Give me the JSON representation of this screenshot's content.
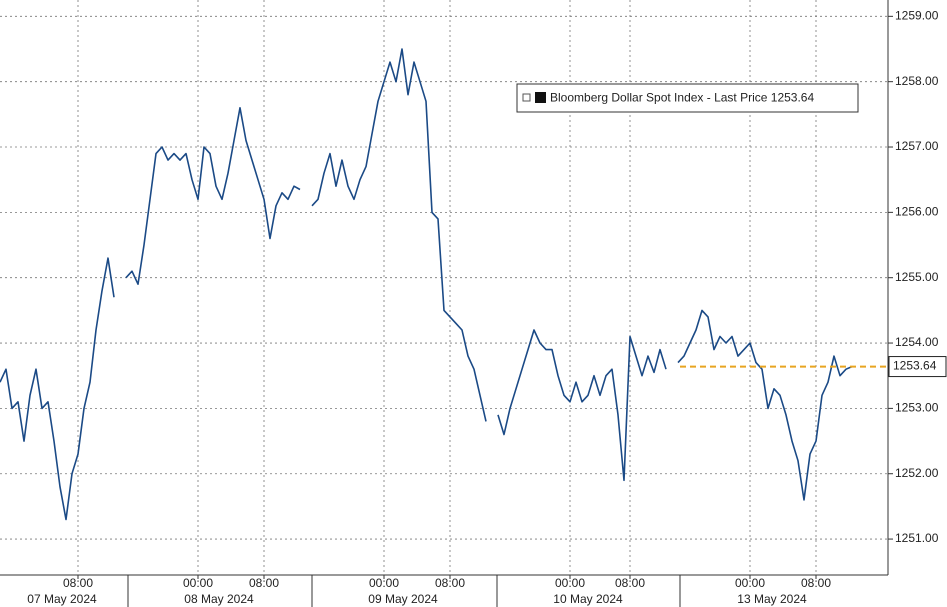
{
  "chart_data": {
    "type": "line",
    "legend": "top-right",
    "grid": true,
    "last_price": 1253.64,
    "ylim": [
      1250.45,
      1259.25
    ],
    "yticks": [
      {
        "value": 1251,
        "label": "1251.00"
      },
      {
        "value": 1252,
        "label": "1252.00"
      },
      {
        "value": 1253,
        "label": "1253.00"
      },
      {
        "value": 1254,
        "label": "1254.00"
      },
      {
        "value": 1255,
        "label": "1255.00"
      },
      {
        "value": 1256,
        "label": "1256.00"
      },
      {
        "value": 1257,
        "label": "1257.00"
      },
      {
        "value": 1258,
        "label": "1258.00"
      },
      {
        "value": 1259,
        "label": "1259.00"
      }
    ],
    "dates": [
      "07 May 2024",
      "08 May 2024",
      "09 May 2024",
      "10 May 2024",
      "13 May 2024"
    ],
    "categories": [
      null,
      null,
      null,
      null,
      null,
      null,
      null,
      null,
      null,
      null,
      null,
      null,
      null,
      "08:00",
      null,
      null,
      null,
      null,
      null,
      null,
      null,
      null,
      null,
      null,
      null,
      null,
      null,
      null,
      null,
      null,
      null,
      null,
      null,
      "00:00",
      null,
      null,
      null,
      null,
      null,
      null,
      null,
      null,
      null,
      null,
      "08:00",
      null,
      null,
      null,
      null,
      null,
      null,
      null,
      null,
      null,
      null,
      null,
      null,
      null,
      null,
      null,
      null,
      null,
      null,
      null,
      "00:00",
      null,
      null,
      null,
      null,
      null,
      null,
      null,
      null,
      null,
      null,
      "08:00",
      null,
      null,
      null,
      null,
      null,
      null,
      null,
      null,
      null,
      null,
      null,
      null,
      null,
      null,
      null,
      null,
      null,
      null,
      null,
      "00:00",
      null,
      null,
      null,
      null,
      null,
      null,
      null,
      null,
      null,
      "08:00",
      null,
      null,
      null,
      null,
      null,
      null,
      null,
      null,
      null,
      null,
      null,
      null,
      null,
      null,
      null,
      null,
      null,
      null,
      null,
      "00:00",
      null,
      null,
      null,
      null,
      null,
      null,
      null,
      null,
      null,
      null,
      "08:00",
      null,
      null,
      null,
      null,
      null,
      null
    ],
    "series": [
      {
        "name": "Bloomberg Dollar Spot Index - Last Price",
        "color": "#1b4a86",
        "values": [
          1253.4,
          1253.6,
          1253.0,
          1253.1,
          1252.5,
          1253.2,
          1253.6,
          1253.0,
          1253.1,
          1252.5,
          1251.8,
          1251.3,
          1252.0,
          1252.3,
          1253.0,
          1253.4,
          1254.2,
          1254.8,
          1255.3,
          1254.7,
          null,
          1255.0,
          1255.1,
          1254.9,
          1255.5,
          1256.2,
          1256.9,
          1257.0,
          1256.8,
          1256.9,
          1256.8,
          1256.9,
          1256.5,
          1256.2,
          1257.0,
          1256.9,
          1256.4,
          1256.2,
          1256.6,
          1257.1,
          1257.6,
          1257.1,
          1256.8,
          1256.5,
          1256.2,
          1255.6,
          1256.1,
          1256.3,
          1256.2,
          1256.4,
          1256.35,
          null,
          1256.1,
          1256.2,
          1256.6,
          1256.9,
          1256.4,
          1256.8,
          1256.4,
          1256.2,
          1256.5,
          1256.7,
          1257.2,
          1257.7,
          1258.0,
          1258.3,
          1258.0,
          1258.5,
          1257.8,
          1258.3,
          1258.0,
          1257.7,
          1256.0,
          1255.9,
          1254.5,
          1254.4,
          1254.3,
          1254.2,
          1253.8,
          1253.6,
          1253.2,
          1252.8,
          null,
          1252.9,
          1252.6,
          1253.0,
          1253.3,
          1253.6,
          1253.9,
          1254.2,
          1254.0,
          1253.9,
          1253.9,
          1253.5,
          1253.2,
          1253.1,
          1253.4,
          1253.1,
          1253.2,
          1253.5,
          1253.2,
          1253.5,
          1253.6,
          1252.9,
          1251.9,
          1254.1,
          1253.8,
          1253.5,
          1253.8,
          1253.55,
          1253.9,
          1253.6,
          null,
          1253.7,
          1253.8,
          1254.0,
          1254.2,
          1254.5,
          1254.4,
          1253.9,
          1254.1,
          1254.0,
          1254.1,
          1253.8,
          1253.9,
          1254.0,
          1253.7,
          1253.6,
          1253.0,
          1253.3,
          1253.2,
          1252.9,
          1252.5,
          1252.2,
          1251.6,
          1252.3,
          1252.5,
          1253.2,
          1253.4,
          1253.8,
          1253.5,
          1253.6,
          1253.64
        ]
      }
    ]
  }
}
